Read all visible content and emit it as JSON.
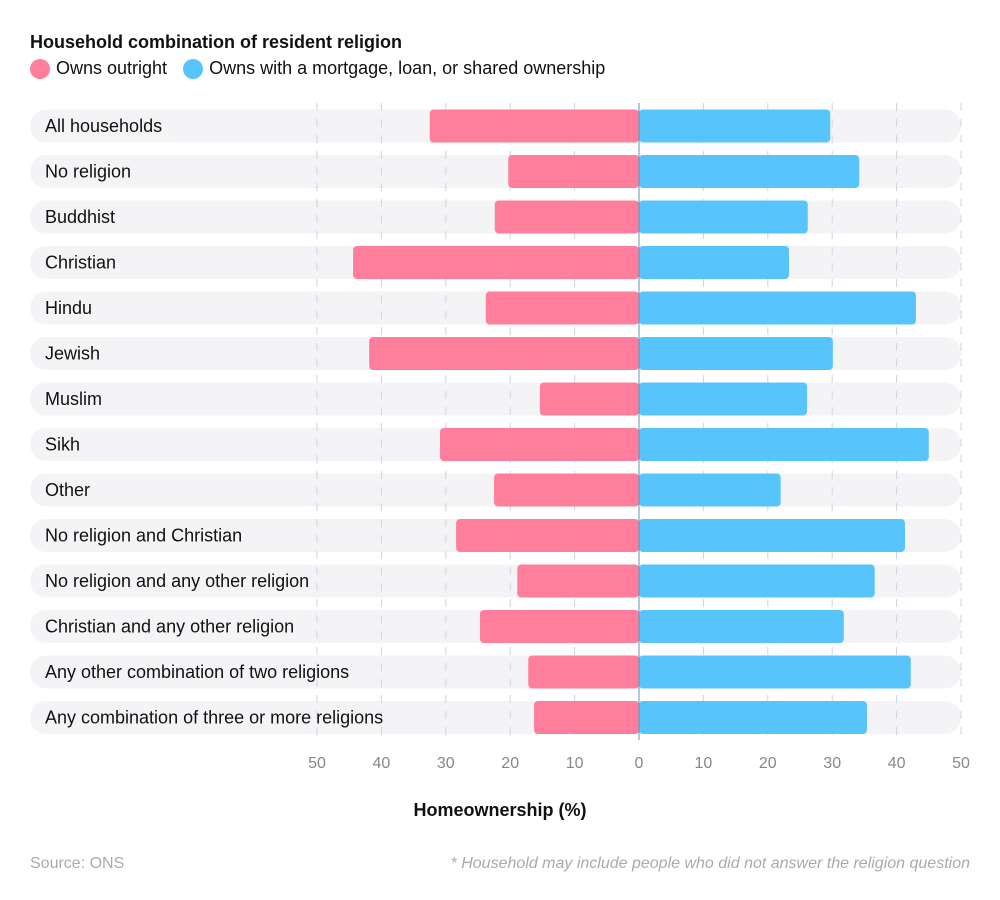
{
  "chart_data": {
    "type": "bar",
    "orientation": "horizontal-diverging",
    "title": "Household combination of resident religion",
    "xlabel": "Homeownership (%)",
    "xlim": [
      -50,
      50
    ],
    "xticks": [
      "50",
      "40",
      "30",
      "20",
      "10",
      "0",
      "10",
      "20",
      "30",
      "40",
      "50"
    ],
    "grid": true,
    "legend_placement": "top-left",
    "categories": [
      "All households",
      "No religion",
      "Buddhist",
      "Christian",
      "Hindu",
      "Jewish",
      "Muslim",
      "Sikh",
      "Other",
      "No religion and Christian",
      "No religion and any other religion",
      "Christian and any other religion",
      "Any other combination of two religions",
      "Any combination of three or more religions"
    ],
    "series": [
      {
        "name": "Owns outright",
        "color": "#ff7e9b",
        "side": "left",
        "values": [
          32.5,
          20.3,
          22.4,
          44.4,
          23.8,
          41.9,
          15.4,
          30.9,
          22.5,
          28.4,
          18.9,
          24.7,
          17.2,
          16.3
        ]
      },
      {
        "name": "Owns with a mortgage, loan, or shared ownership",
        "color": "#58c4fc",
        "side": "right",
        "values": [
          29.7,
          34.2,
          26.2,
          23.3,
          43.0,
          30.1,
          26.1,
          45.0,
          22.0,
          41.3,
          36.6,
          31.8,
          42.2,
          35.4
        ]
      }
    ]
  },
  "source": "Source: ONS",
  "note": "* Household may include people who did not answer the religion question"
}
